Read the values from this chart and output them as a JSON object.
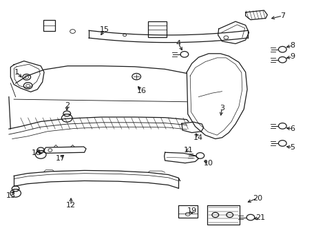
{
  "background_color": "#ffffff",
  "line_color": "#1a1a1a",
  "lw": 0.9,
  "fs": 8.0,
  "parts_labels": {
    "1": [
      0.048,
      0.29,
      0.068,
      0.318
    ],
    "2": [
      0.198,
      0.425,
      0.198,
      0.455
    ],
    "3": [
      0.66,
      0.435,
      0.655,
      0.475
    ],
    "4": [
      0.53,
      0.175,
      0.545,
      0.21
    ],
    "5": [
      0.87,
      0.595,
      0.845,
      0.59
    ],
    "6": [
      0.87,
      0.52,
      0.845,
      0.515
    ],
    "7": [
      0.84,
      0.062,
      0.8,
      0.075
    ],
    "8": [
      0.87,
      0.182,
      0.845,
      0.192
    ],
    "9": [
      0.87,
      0.228,
      0.845,
      0.235
    ],
    "10": [
      0.62,
      0.66,
      0.6,
      0.645
    ],
    "11": [
      0.56,
      0.605,
      0.545,
      0.612
    ],
    "12": [
      0.21,
      0.83,
      0.21,
      0.79
    ],
    "13": [
      0.032,
      0.79,
      0.045,
      0.762
    ],
    "14": [
      0.59,
      0.555,
      0.578,
      0.53
    ],
    "15": [
      0.31,
      0.118,
      0.295,
      0.148
    ],
    "16": [
      0.42,
      0.365,
      0.405,
      0.34
    ],
    "17": [
      0.178,
      0.64,
      0.192,
      0.618
    ],
    "18": [
      0.108,
      0.618,
      0.132,
      0.618
    ],
    "19": [
      0.57,
      0.85,
      0.57,
      0.875
    ],
    "20": [
      0.765,
      0.8,
      0.73,
      0.82
    ],
    "21": [
      0.775,
      0.88,
      0.748,
      0.885
    ]
  }
}
